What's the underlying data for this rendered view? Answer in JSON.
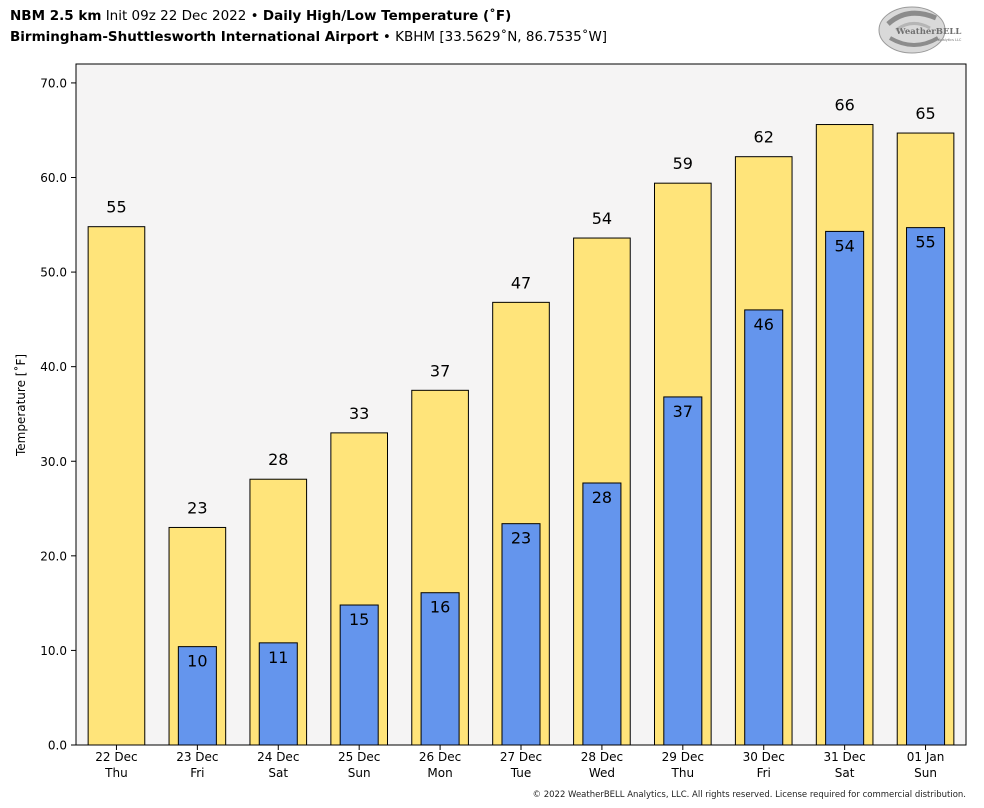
{
  "header": {
    "model": "NBM 2.5 km",
    "init": "Init 09z 22 Dec 2022",
    "separator": "•",
    "product": "Daily High/Low Temperature (˚F)",
    "station_name": "Birmingham-Shuttlesworth International Airport",
    "station_info": "KBHM [33.5629˚N, 86.7535˚W]"
  },
  "logo": {
    "text_main": "WeatherBELL",
    "text_sub": "Analytics LLC",
    "icon": "weatherbell-swirl-logo"
  },
  "footer": {
    "copyright": "© 2022 WeatherBELL Analytics, LLC. All rights reserved. License required for commercial distribution."
  },
  "colors": {
    "high": "#FFE47A",
    "low": "#6495ED",
    "plot_background": "#F5F4F4"
  },
  "chart_data": {
    "type": "bar",
    "title": "Daily High/Low Temperature (˚F)",
    "xlabel": "",
    "ylabel": "Temperature [˚F]",
    "ylim": [
      0,
      72
    ],
    "yticks": [
      0,
      10,
      20,
      30,
      40,
      50,
      60,
      70
    ],
    "ytick_labels": [
      "0.0",
      "10.0",
      "20.0",
      "30.0",
      "40.0",
      "50.0",
      "60.0",
      "70.0"
    ],
    "grid": false,
    "legend": "none",
    "categories": [
      {
        "date": "22 Dec",
        "day": "Thu"
      },
      {
        "date": "23 Dec",
        "day": "Fri"
      },
      {
        "date": "24 Dec",
        "day": "Sat"
      },
      {
        "date": "25 Dec",
        "day": "Sun"
      },
      {
        "date": "26 Dec",
        "day": "Mon"
      },
      {
        "date": "27 Dec",
        "day": "Tue"
      },
      {
        "date": "28 Dec",
        "day": "Wed"
      },
      {
        "date": "29 Dec",
        "day": "Thu"
      },
      {
        "date": "30 Dec",
        "day": "Fri"
      },
      {
        "date": "31 Dec",
        "day": "Sat"
      },
      {
        "date": "01 Jan",
        "day": "Sun"
      }
    ],
    "series": [
      {
        "name": "",
        "key": "high",
        "values": [
          54.8,
          23.0,
          28.1,
          33.0,
          37.5,
          46.8,
          53.6,
          59.4,
          62.2,
          65.6,
          64.7
        ],
        "labels": [
          "55",
          "23",
          "28",
          "33",
          "37",
          "47",
          "54",
          "59",
          "62",
          "66",
          "65"
        ]
      },
      {
        "name": "",
        "key": "low",
        "values": [
          null,
          10.4,
          10.8,
          14.8,
          16.1,
          23.4,
          27.7,
          36.8,
          46.0,
          54.3,
          54.7
        ],
        "labels": [
          "",
          "10",
          "11",
          "15",
          "16",
          "23",
          "28",
          "37",
          "46",
          "54",
          "55"
        ]
      }
    ]
  }
}
